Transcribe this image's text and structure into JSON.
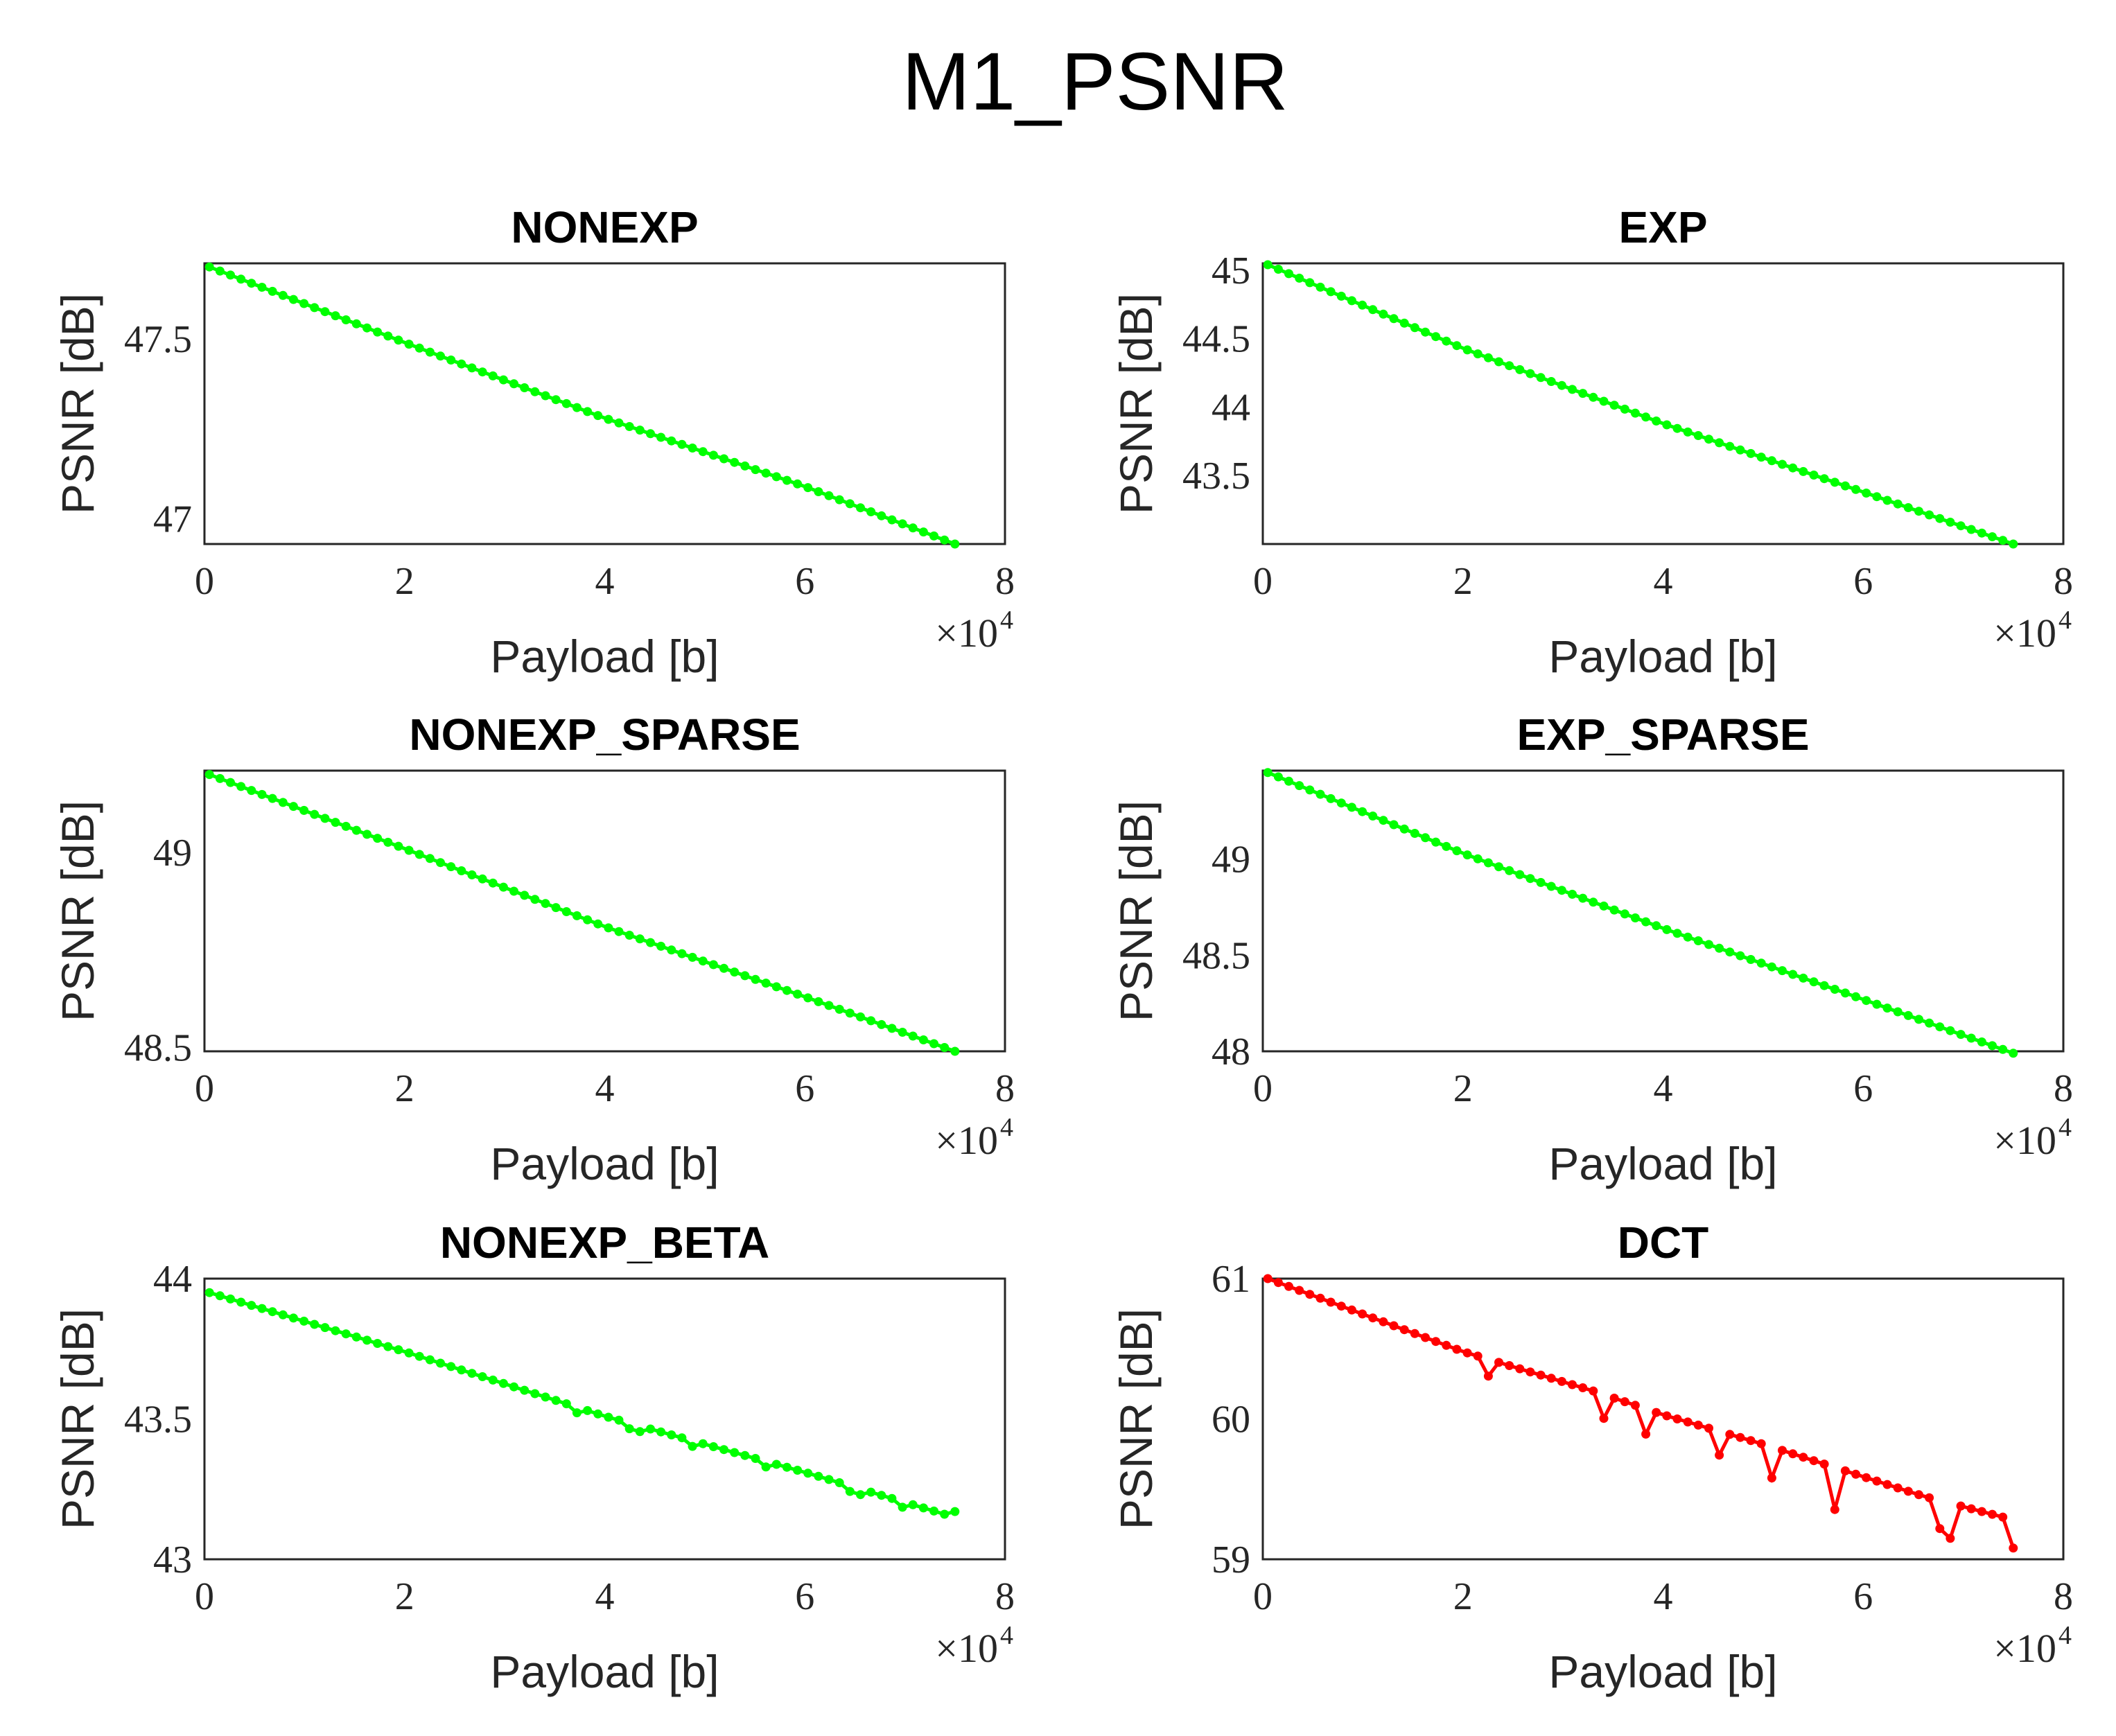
{
  "figure_title": "M1_PSNR",
  "colors": {
    "green": "#00ff00",
    "red": "#ff0000",
    "axis": "#262626",
    "grid": "#dcdcdc"
  },
  "chart_data": [
    {
      "type": "line",
      "title": "NONEXP",
      "xlabel": "Payload [b]",
      "ylabel": "PSNR [dB]",
      "x_multiplier": "×10",
      "x_multiplier_exp": "4",
      "xlim": [
        0,
        8
      ],
      "ylim": [
        46.93,
        47.71
      ],
      "xticks": [
        "0",
        "2",
        "4",
        "6",
        "8"
      ],
      "yticks": [
        {
          "v": 47,
          "label": "47"
        },
        {
          "v": 47.5,
          "label": "47.5"
        }
      ],
      "series": [
        {
          "name": "NONEXP",
          "color": "green",
          "x_start": 0.05,
          "x_end": 7.5,
          "n": 72,
          "anchors": [
            [
              0.05,
              47.7
            ],
            [
              2,
              47.49
            ],
            [
              4,
              47.28
            ],
            [
              6,
              47.09
            ],
            [
              7.5,
              46.93
            ]
          ],
          "dips": []
        }
      ]
    },
    {
      "type": "line",
      "title": "EXP",
      "xlabel": "Payload [b]",
      "ylabel": "PSNR [dB]",
      "x_multiplier": "×10",
      "x_multiplier_exp": "4",
      "xlim": [
        0,
        8
      ],
      "ylim": [
        43.0,
        45.05
      ],
      "xticks": [
        "0",
        "2",
        "4",
        "6",
        "8"
      ],
      "yticks": [
        {
          "v": 43.5,
          "label": "43.5"
        },
        {
          "v": 44,
          "label": "44"
        },
        {
          "v": 44.5,
          "label": "44.5"
        },
        {
          "v": 45,
          "label": "45"
        }
      ],
      "series": [
        {
          "name": "EXP",
          "color": "green",
          "x_start": 0.05,
          "x_end": 7.5,
          "n": 72,
          "anchors": [
            [
              0.05,
              45.04
            ],
            [
              2,
              44.43
            ],
            [
              4,
              43.88
            ],
            [
              6,
              43.38
            ],
            [
              7.5,
              43.0
            ]
          ],
          "dips": []
        }
      ]
    },
    {
      "type": "line",
      "title": "NONEXP_SPARSE",
      "xlabel": "Payload [b]",
      "ylabel": "PSNR [dB]",
      "x_multiplier": "×10",
      "x_multiplier_exp": "4",
      "xlim": [
        0,
        8
      ],
      "ylim": [
        48.49,
        49.21
      ],
      "xticks": [
        "0",
        "2",
        "4",
        "6",
        "8"
      ],
      "yticks": [
        {
          "v": 48.5,
          "label": "48.5"
        },
        {
          "v": 49,
          "label": "49"
        }
      ],
      "series": [
        {
          "name": "NONEXP_SPARSE",
          "color": "green",
          "x_start": 0.05,
          "x_end": 7.5,
          "n": 72,
          "anchors": [
            [
              0.05,
              49.2
            ],
            [
              2,
              49.01
            ],
            [
              4,
              48.81
            ],
            [
              6,
              48.63
            ],
            [
              7.5,
              48.49
            ]
          ],
          "dips": []
        }
      ]
    },
    {
      "type": "line",
      "title": "EXP_SPARSE",
      "xlabel": "Payload [b]",
      "ylabel": "PSNR [dB]",
      "x_multiplier": "×10",
      "x_multiplier_exp": "4",
      "xlim": [
        0,
        8
      ],
      "ylim": [
        48.0,
        49.46
      ],
      "xticks": [
        "0",
        "2",
        "4",
        "6",
        "8"
      ],
      "yticks": [
        {
          "v": 48,
          "label": "48"
        },
        {
          "v": 48.5,
          "label": "48.5"
        },
        {
          "v": 49,
          "label": "49"
        }
      ],
      "series": [
        {
          "name": "EXP_SPARSE",
          "color": "green",
          "x_start": 0.05,
          "x_end": 7.5,
          "n": 72,
          "anchors": [
            [
              0.05,
              49.45
            ],
            [
              2,
              49.03
            ],
            [
              4,
              48.64
            ],
            [
              6,
              48.27
            ],
            [
              7.5,
              47.99
            ]
          ],
          "dips": []
        }
      ]
    },
    {
      "type": "line",
      "title": "NONEXP_BETA",
      "xlabel": "Payload [b]",
      "ylabel": "PSNR [dB]",
      "x_multiplier": "×10",
      "x_multiplier_exp": "4",
      "xlim": [
        0,
        8
      ],
      "ylim": [
        43.0,
        44.0
      ],
      "xticks": [
        "0",
        "2",
        "4",
        "6",
        "8"
      ],
      "yticks": [
        {
          "v": 43,
          "label": "43"
        },
        {
          "v": 43.5,
          "label": "43.5"
        },
        {
          "v": 44,
          "label": "44"
        }
      ],
      "series": [
        {
          "name": "NONEXP_BETA",
          "color": "green",
          "x_start": 0.05,
          "x_end": 7.5,
          "n": 72,
          "anchors": [
            [
              0.05,
              43.95
            ],
            [
              2,
              43.74
            ],
            [
              4,
              43.51
            ],
            [
              6,
              43.31
            ],
            [
              7.4,
              43.16
            ],
            [
              7.5,
              43.17
            ]
          ],
          "dips": [
            [
              3.7,
              0.02
            ],
            [
              4.3,
              0.02
            ],
            [
              4.9,
              0.02
            ],
            [
              5.6,
              0.02
            ],
            [
              6.5,
              0.02
            ],
            [
              7.0,
              0.02
            ]
          ]
        }
      ]
    },
    {
      "type": "line",
      "title": "DCT",
      "xlabel": "Payload [b]",
      "ylabel": "PSNR [dB]",
      "x_multiplier": "×10",
      "x_multiplier_exp": "4",
      "xlim": [
        0,
        8
      ],
      "ylim": [
        59.0,
        61.0
      ],
      "xticks": [
        "0",
        "2",
        "4",
        "6",
        "8"
      ],
      "yticks": [
        {
          "v": 59,
          "label": "59"
        },
        {
          "v": 60,
          "label": "60"
        },
        {
          "v": 61,
          "label": "61"
        }
      ],
      "series": [
        {
          "name": "DCT",
          "color": "red",
          "x_start": 0.05,
          "x_end": 7.5,
          "n": 72,
          "anchors": [
            [
              0.05,
              61.0
            ],
            [
              2,
              60.48
            ],
            [
              3.3,
              60.2
            ],
            [
              4.0,
              60.03
            ],
            [
              5.0,
              59.82
            ],
            [
              6.6,
              59.45
            ],
            [
              7.4,
              59.3
            ],
            [
              7.5,
              59.08
            ]
          ],
          "dips": [
            [
              2.3,
              0.12
            ],
            [
              3.4,
              0.17
            ],
            [
              3.8,
              0.18
            ],
            [
              4.6,
              0.17
            ],
            [
              5.1,
              0.22
            ],
            [
              5.7,
              0.3
            ],
            [
              6.75,
              0.2
            ],
            [
              6.9,
              0.25
            ]
          ]
        }
      ]
    }
  ]
}
